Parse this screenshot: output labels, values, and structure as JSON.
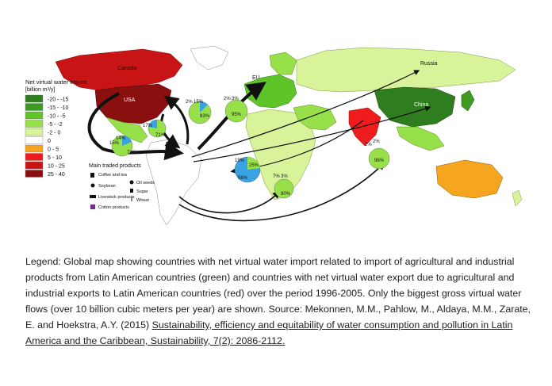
{
  "map": {
    "legend": {
      "title": "Net virtual water import",
      "unit": "[billion m³/y]",
      "classes": [
        {
          "label": "-20 - -15",
          "color": "#2e7d1e"
        },
        {
          "label": "-15 - -10",
          "color": "#3e9a22"
        },
        {
          "label": "-10 - -5",
          "color": "#5fc427"
        },
        {
          "label": "-5 - -2",
          "color": "#98e04a"
        },
        {
          "label": "-2 - 0",
          "color": "#d8f39a"
        },
        {
          "label": "0",
          "color": "#ffffff"
        },
        {
          "label": "0 - 5",
          "color": "#f5a51e"
        },
        {
          "label": "5 - 10",
          "color": "#ee1c1c"
        },
        {
          "label": "10 - 25",
          "color": "#c81414"
        },
        {
          "label": "25 - 40",
          "color": "#8a0f0f"
        }
      ]
    },
    "products": {
      "title": "Main traded products",
      "items": [
        {
          "label": "Coffee and tea",
          "icon": "coffee-icon"
        },
        {
          "label": "Oil seeds",
          "icon": "oil-seeds-icon"
        },
        {
          "label": "Soybean",
          "icon": "soybean-icon"
        },
        {
          "label": "Sugar",
          "icon": "sugar-icon"
        },
        {
          "label": "Livestock products",
          "icon": "livestock-icon"
        },
        {
          "label": "Wheat",
          "icon": "wheat-icon"
        },
        {
          "label": "Cotton products",
          "icon": "cotton-icon"
        }
      ]
    },
    "region_labels": {
      "canada": "Canada",
      "usa": "USA",
      "eu": "EU",
      "russia": "Russia",
      "china": "China"
    },
    "pies": {
      "usa_left": {
        "main": "71%",
        "minor": [
          "15%",
          "14%"
        ]
      },
      "usa_mid": {
        "main": "71%",
        "minor": [
          "17%"
        ]
      },
      "usa_right": {
        "main": "83%",
        "minor": [
          "2%",
          "15%"
        ]
      },
      "eu": {
        "main": "95%",
        "minor": [
          "2%",
          "3%"
        ]
      },
      "brazil": {
        "main": "56%",
        "minor": [
          "19%",
          "25%"
        ]
      },
      "south": {
        "main": "90%",
        "minor": [
          "7%",
          "3%"
        ]
      },
      "asia": {
        "main": "96%",
        "minor": [
          "2%",
          "2%"
        ]
      }
    }
  },
  "caption": {
    "text": "Legend: Global map showing countries with net virtual water import related to import of agricultural and industrial products from Latin American countries (green) and countries with net virtual water export due to agricultural and industrial exports to Latin American countries (red) over the period 1996-2005. Only the biggest gross virtual water flows (over 10 billion cubic meters per year) are shown. Source: Mekonnen, M.M., Pahlow, M., Aldaya, M.M., Zarate, E. and Hoekstra, A.Y. (2015) ",
    "link_text": "Sustainability, efficiency and equitability of water consumption and pollution in Latin America and the Caribbean, Sustainability, 7(2): 2086-2112."
  }
}
